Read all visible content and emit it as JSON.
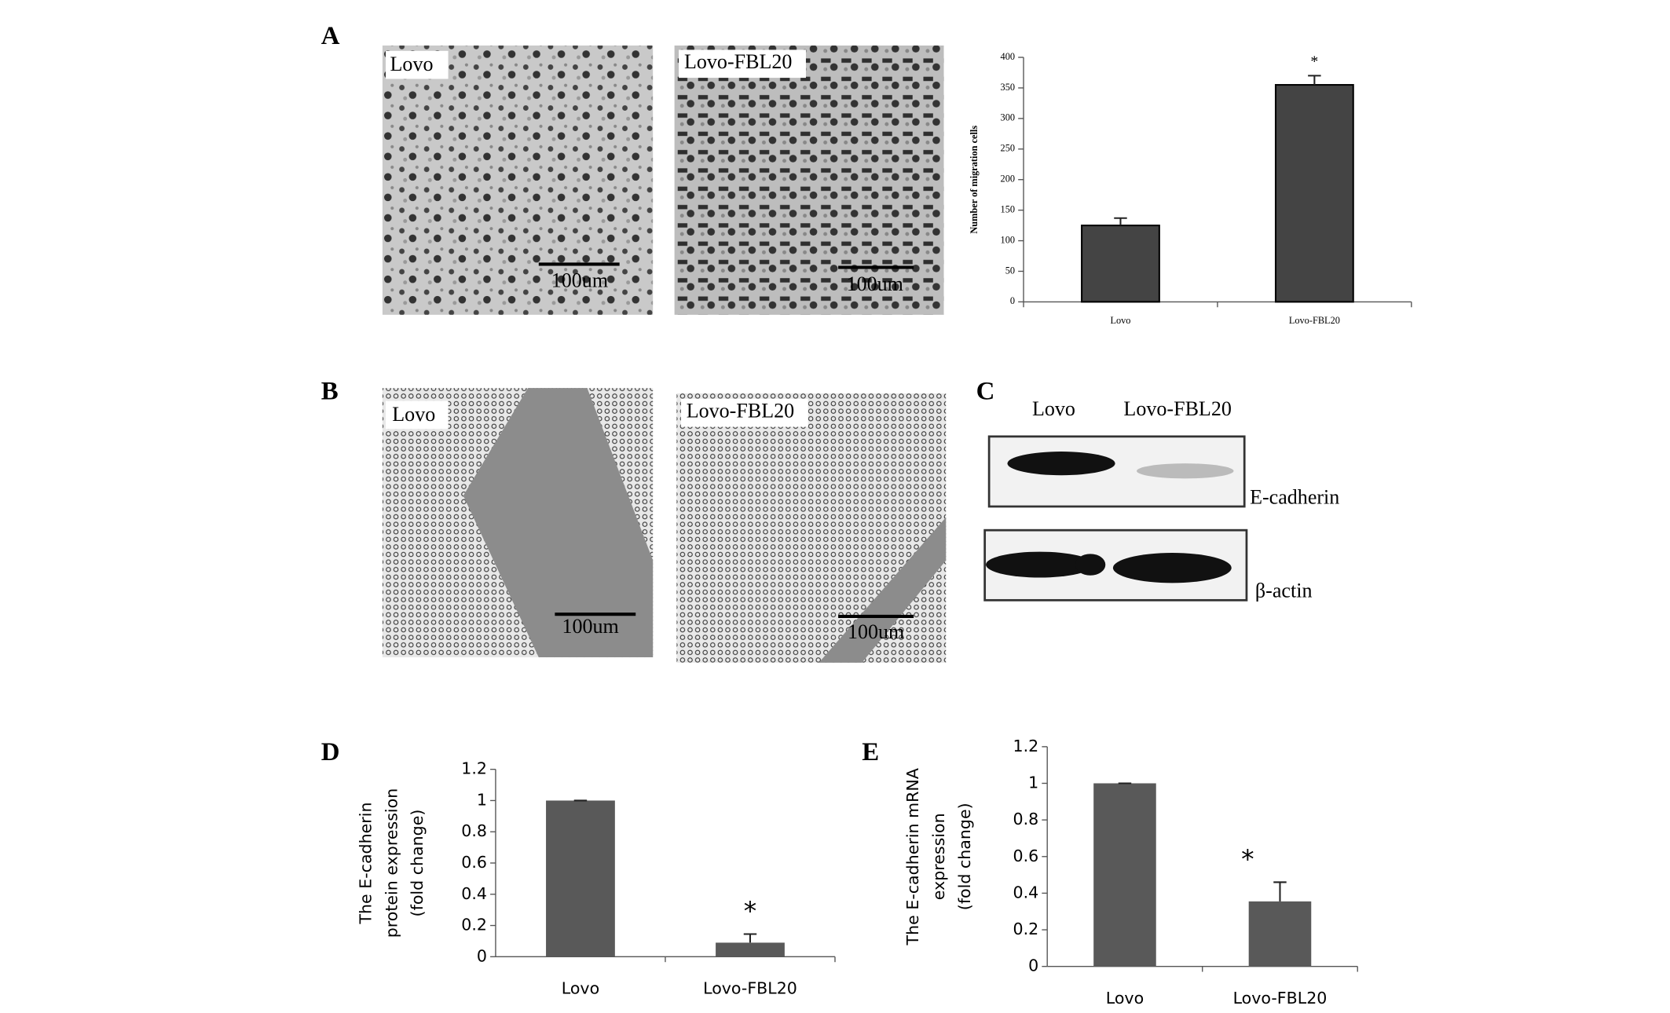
{
  "panel_labels": [
    "A",
    "B",
    "C",
    "D",
    "E"
  ],
  "images": [
    {
      "label": "Lovo",
      "scale": "100um"
    },
    {
      "label": "Lovo-FBL20",
      "scale": "100um"
    },
    {
      "label": "Lovo",
      "scale": "100um"
    },
    {
      "label": "Lovo-FBL20",
      "scale": "100um"
    }
  ],
  "blot": {
    "lanes": [
      "Lovo",
      "Lovo-FBL20"
    ],
    "bands": [
      "E-cadherin",
      "β-actin"
    ]
  },
  "chart_data": [
    {
      "type": "bar",
      "categories": [
        "Lovo",
        "Lovo-FBL20"
      ],
      "values": [
        125,
        355
      ],
      "errors": [
        12,
        15
      ],
      "significance": [
        null,
        "*"
      ],
      "color": "#444444",
      "ylabel": [
        "Number of migration cells"
      ],
      "ylim": [
        0,
        400
      ],
      "yticks": [
        0,
        50,
        100,
        150,
        200,
        250,
        300,
        350,
        400
      ]
    },
    {
      "type": "bar",
      "categories": [
        "Lovo",
        "Lovo-FBL20"
      ],
      "values": [
        1,
        0.09
      ],
      "errors": [
        0,
        0.055
      ],
      "significance": [
        null,
        "*"
      ],
      "color": "#595959",
      "ylabel": [
        "The E-cadherin",
        "protein expression",
        "(fold change)"
      ],
      "ylim": [
        0,
        1.2
      ],
      "yticks": [
        0,
        0.2,
        0.4,
        0.6,
        0.8,
        1,
        1.2
      ]
    },
    {
      "type": "bar",
      "categories": [
        "Lovo",
        "Lovo-FBL20"
      ],
      "values": [
        1,
        0.355
      ],
      "errors": [
        0,
        0.105
      ],
      "significance": [
        null,
        "*"
      ],
      "color": "#595959",
      "ylabel": [
        "The E-cadherin mRNA",
        "expression",
        "(fold change)"
      ],
      "ylim": [
        0,
        1.2
      ],
      "yticks": [
        0,
        0.2,
        0.4,
        0.6,
        0.8,
        1,
        1.2
      ]
    }
  ]
}
